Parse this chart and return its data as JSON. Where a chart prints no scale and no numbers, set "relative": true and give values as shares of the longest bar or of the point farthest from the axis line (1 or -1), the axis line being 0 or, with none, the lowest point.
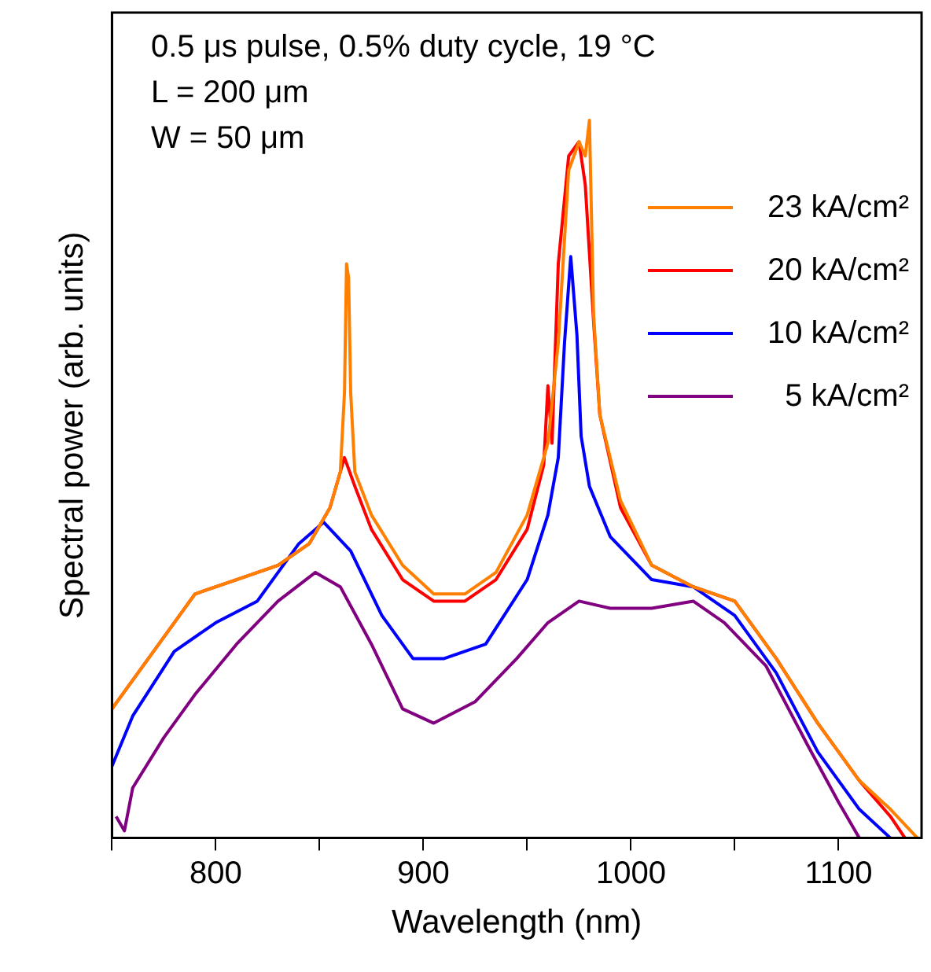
{
  "chart_data": {
    "type": "line",
    "xlabel": "Wavelength (nm)",
    "ylabel": "Spectral power (arb. units)",
    "relative": true,
    "xlim": [
      750,
      1140
    ],
    "xticks": [
      {
        "value": 750,
        "label": null
      },
      800,
      {
        "value": 850,
        "label": null
      },
      900,
      {
        "value": 950,
        "label": null
      },
      1000,
      {
        "value": 1050,
        "label": null
      },
      1100
    ],
    "grid": false,
    "legend": "top right",
    "marker": "none",
    "line_style": "solid",
    "annotations": [
      "0.5 μs pulse, 0.5% duty cycle, 19 °C",
      "L = 200 μm",
      "W = 50 μm"
    ],
    "series": [
      {
        "name": "23 kA/cm²",
        "color": "#ff8000",
        "x": [
          750,
          770,
          790,
          810,
          830,
          845,
          855,
          860,
          862,
          863,
          864,
          865,
          867,
          875,
          890,
          905,
          920,
          935,
          950,
          960,
          965,
          970,
          975,
          978,
          980,
          982,
          985,
          995,
          1010,
          1030,
          1050,
          1070,
          1090,
          1110,
          1125,
          1138
        ],
        "values": [
          0.18,
          0.26,
          0.34,
          0.36,
          0.38,
          0.41,
          0.46,
          0.51,
          0.62,
          0.8,
          0.78,
          0.62,
          0.51,
          0.45,
          0.38,
          0.34,
          0.34,
          0.37,
          0.45,
          0.55,
          0.69,
          0.93,
          0.97,
          0.95,
          1.0,
          0.73,
          0.59,
          0.47,
          0.38,
          0.35,
          0.33,
          0.25,
          0.16,
          0.08,
          0.04,
          0
        ]
      },
      {
        "name": "20 kA/cm²",
        "color": "#ff0000",
        "x": [
          750,
          770,
          790,
          810,
          830,
          845,
          855,
          862,
          867,
          875,
          890,
          905,
          920,
          935,
          950,
          958,
          960,
          962,
          965,
          970,
          975,
          978,
          982,
          985,
          995,
          1010,
          1030,
          1050,
          1070,
          1090,
          1110,
          1125,
          1132
        ],
        "values": [
          0.18,
          0.26,
          0.34,
          0.36,
          0.38,
          0.41,
          0.46,
          0.53,
          0.49,
          0.43,
          0.36,
          0.33,
          0.33,
          0.36,
          0.43,
          0.52,
          0.63,
          0.55,
          0.8,
          0.95,
          0.97,
          0.91,
          0.72,
          0.59,
          0.46,
          0.38,
          0.35,
          0.33,
          0.25,
          0.16,
          0.08,
          0.03,
          0
        ]
      },
      {
        "name": "10 kA/cm²",
        "color": "#0000ff",
        "x": [
          750,
          760,
          780,
          800,
          820,
          840,
          852,
          865,
          880,
          895,
          910,
          930,
          950,
          960,
          965,
          968,
          971,
          974,
          976,
          980,
          990,
          1010,
          1030,
          1050,
          1070,
          1090,
          1110,
          1125
        ],
        "values": [
          0.1,
          0.17,
          0.26,
          0.3,
          0.33,
          0.41,
          0.44,
          0.4,
          0.31,
          0.25,
          0.25,
          0.27,
          0.36,
          0.45,
          0.53,
          0.69,
          0.81,
          0.7,
          0.56,
          0.49,
          0.42,
          0.36,
          0.35,
          0.31,
          0.23,
          0.12,
          0.04,
          0
        ]
      },
      {
        "name": "5 kA/cm²",
        "color": "#800080",
        "x": [
          752,
          756,
          760,
          775,
          790,
          810,
          830,
          848,
          860,
          875,
          890,
          905,
          925,
          945,
          960,
          975,
          990,
          1010,
          1030,
          1045,
          1065,
          1085,
          1100,
          1110
        ],
        "values": [
          0.03,
          0.01,
          0.07,
          0.14,
          0.2,
          0.27,
          0.33,
          0.37,
          0.35,
          0.27,
          0.18,
          0.16,
          0.19,
          0.25,
          0.3,
          0.33,
          0.32,
          0.32,
          0.33,
          0.3,
          0.24,
          0.13,
          0.05,
          0
        ]
      }
    ]
  }
}
